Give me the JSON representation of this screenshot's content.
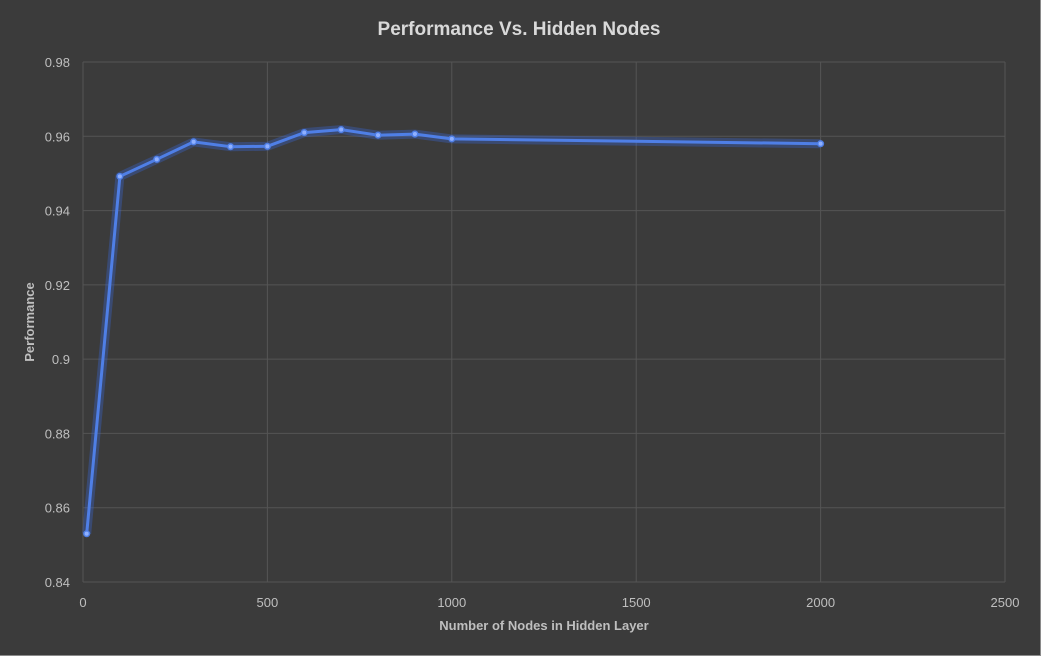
{
  "chart_data": {
    "type": "line",
    "title": "Performance Vs. Hidden Nodes",
    "xlabel": "Number of Nodes in Hidden Layer",
    "ylabel": "Performance",
    "xlim": [
      0,
      2500
    ],
    "ylim": [
      0.84,
      0.98
    ],
    "x_ticks": [
      "0",
      "500",
      "1000",
      "1500",
      "2000",
      "2500"
    ],
    "x_tick_values": [
      0,
      500,
      1000,
      1500,
      2000,
      2500
    ],
    "y_ticks": [
      "0.84",
      "0.86",
      "0.88",
      "0.9",
      "0.92",
      "0.94",
      "0.96",
      "0.98"
    ],
    "y_tick_values": [
      0.84,
      0.86,
      0.88,
      0.9,
      0.92,
      0.94,
      0.96,
      0.98
    ],
    "grid": true,
    "legend": "none",
    "series": [
      {
        "color": "#4f7fe6",
        "x": [
          10,
          100,
          200,
          300,
          400,
          500,
          600,
          700,
          800,
          900,
          1000,
          2000
        ],
        "y": [
          0.853,
          0.9492,
          0.9538,
          0.9585,
          0.9572,
          0.9573,
          0.961,
          0.9618,
          0.9603,
          0.9606,
          0.9593,
          0.958
        ]
      }
    ]
  },
  "colors": {
    "background": "#3b3b3b",
    "gridline": "#555555",
    "text": "#bfbfbf",
    "title": "#d9d9d9",
    "series": "#4f7fe6"
  }
}
